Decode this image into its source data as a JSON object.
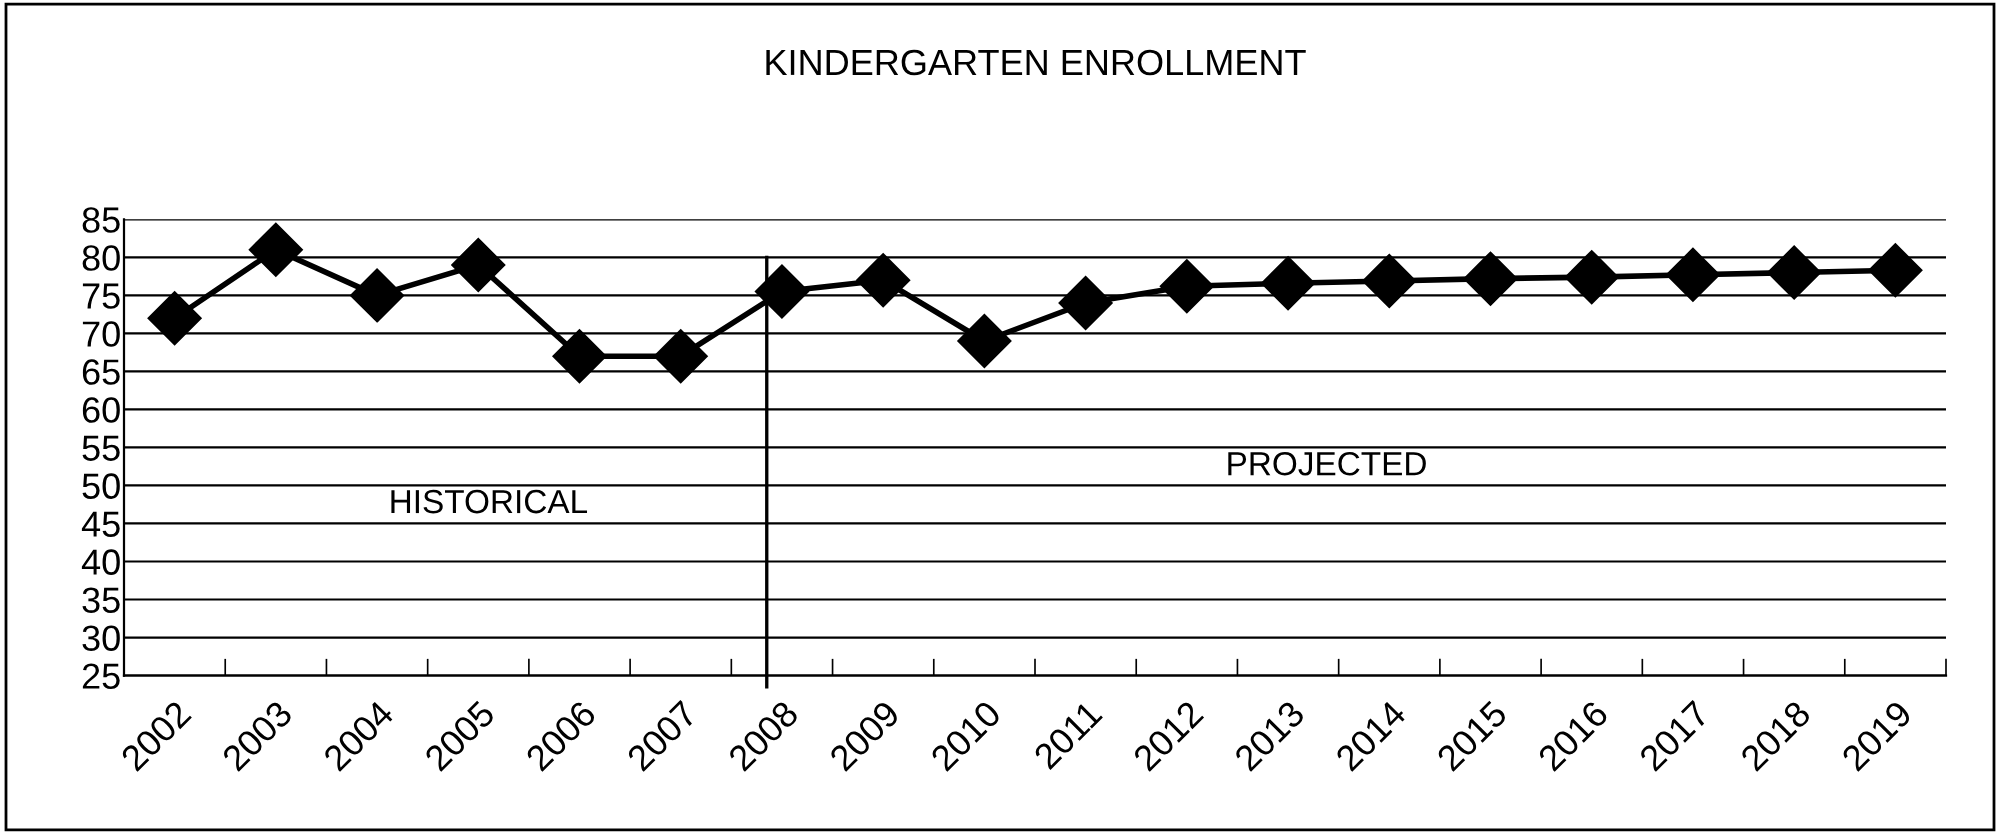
{
  "chart_data": {
    "type": "line",
    "title": "KINDERGARTEN ENROLLMENT",
    "categories": [
      "2002",
      "2003",
      "2004",
      "2005",
      "2006",
      "2007",
      "2008",
      "2009",
      "2010",
      "2011",
      "2012",
      "2013",
      "2014",
      "2015",
      "2016",
      "2017",
      "2018",
      "2019"
    ],
    "series": [
      {
        "color": "#000000",
        "values": [
          72,
          81,
          75,
          79,
          67,
          67,
          75.5,
          77,
          69,
          74,
          76.2,
          76.6,
          76.9,
          77.2,
          77.4,
          77.7,
          78,
          78.3
        ]
      }
    ],
    "ylim": [
      25,
      85
    ],
    "yticks": [
      25,
      30,
      35,
      40,
      45,
      50,
      55,
      60,
      65,
      70,
      75,
      80,
      85
    ],
    "grid": "y",
    "marker": "diamond",
    "line_style": "solid",
    "legend": false,
    "ref_lines": [
      {
        "axis": "x",
        "value": "2008",
        "color": "#000000"
      }
    ],
    "annotations": [
      "HISTORICAL",
      "PROJECTED"
    ]
  }
}
